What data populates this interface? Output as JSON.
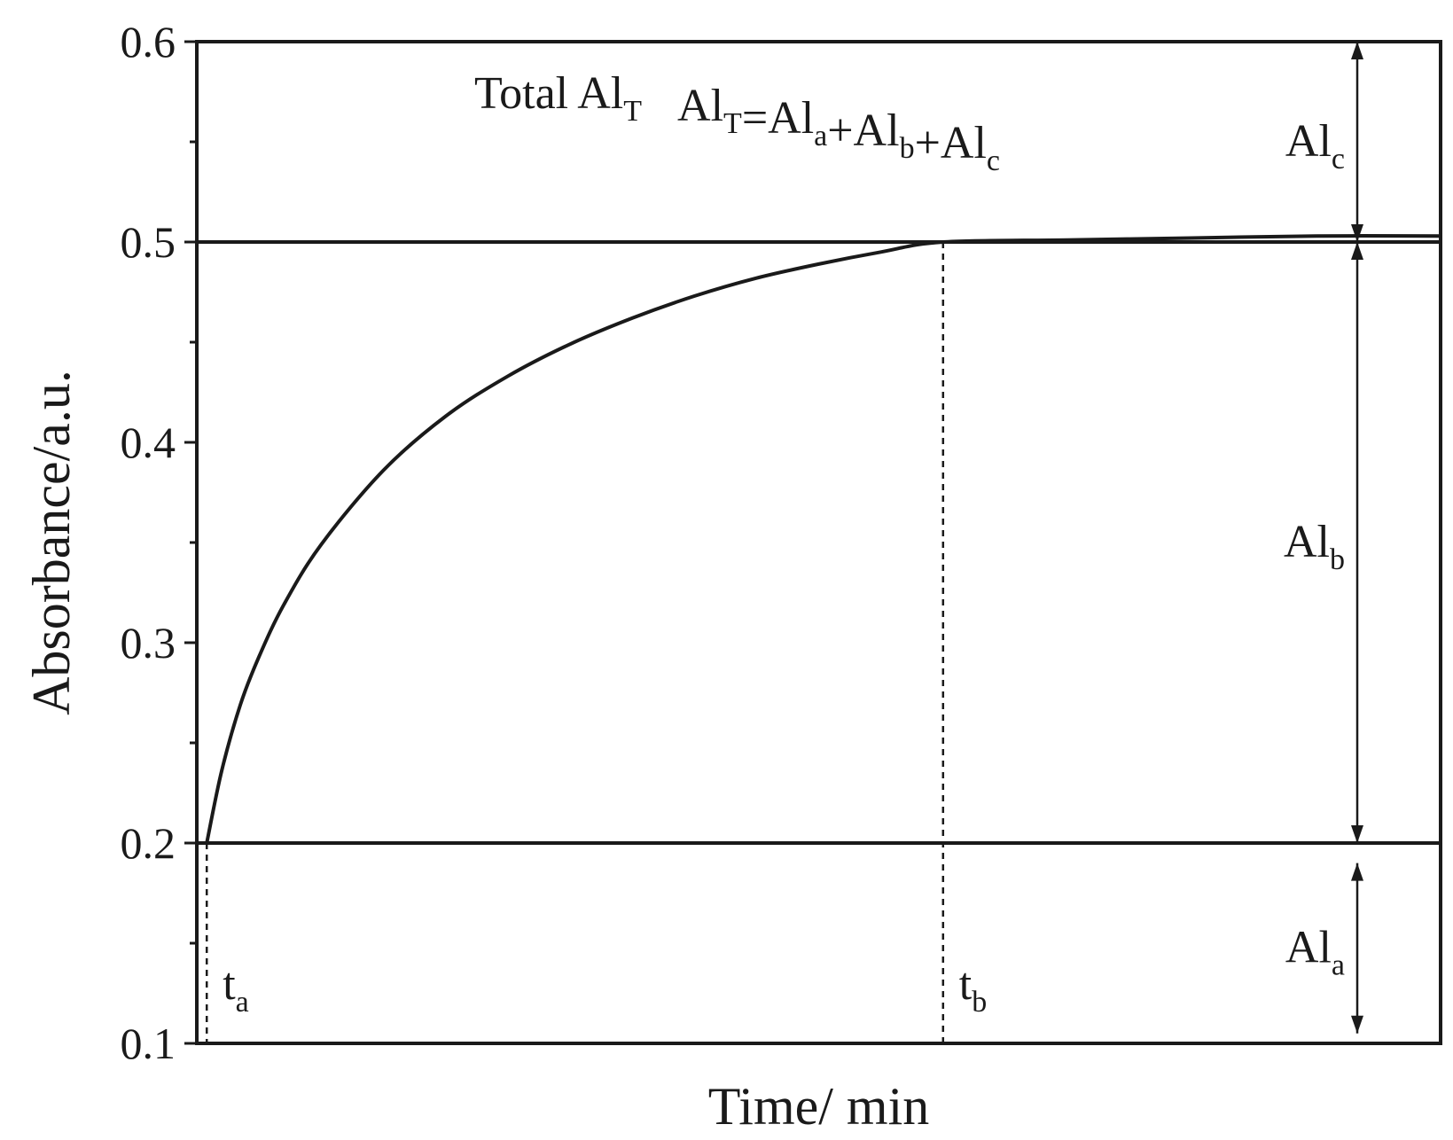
{
  "chart_data": {
    "type": "line",
    "title": "",
    "xlabel": "Time/ min",
    "ylabel": "Absorbance/a.u.",
    "ylim": [
      0.1,
      0.6
    ],
    "yticks": [
      "0.1",
      "0.2",
      "0.3",
      "0.4",
      "0.5",
      "0.6"
    ],
    "xlim": [
      0,
      10
    ],
    "grid": false,
    "series": [
      {
        "x": [
          0.08,
          0.2,
          0.35,
          0.5,
          0.7,
          1.0,
          1.5,
          2.0,
          2.5,
          3.0,
          3.5,
          4.0,
          4.5,
          5.0,
          5.5,
          6.0,
          7.0,
          8.0,
          9.0,
          10.0
        ],
        "values": [
          0.2,
          0.236,
          0.269,
          0.293,
          0.319,
          0.349,
          0.386,
          0.413,
          0.433,
          0.449,
          0.462,
          0.473,
          0.482,
          0.489,
          0.495,
          0.5,
          0.501,
          0.502,
          0.503,
          0.503
        ]
      }
    ],
    "reference_lines": [
      {
        "axis": "y",
        "value": 0.2
      },
      {
        "axis": "y",
        "value": 0.5
      }
    ],
    "markers": [
      {
        "label": "t",
        "sub": "a",
        "x": 0.08
      },
      {
        "label": "t",
        "sub": "b",
        "x": 6.0
      }
    ],
    "formula": {
      "prefix": "Total Al",
      "prefix_sub": "T",
      "parts": [
        {
          "text": "Al",
          "sub": "T"
        },
        {
          "text": "=Al",
          "sub": "a"
        },
        {
          "text": "+Al",
          "sub": "b"
        },
        {
          "text": "+Al",
          "sub": "c"
        }
      ]
    },
    "ranges": [
      {
        "label": "Al",
        "sub": "c",
        "from": 0.6,
        "to": 0.5
      },
      {
        "label": "Al",
        "sub": "b",
        "from": 0.5,
        "to": 0.2
      },
      {
        "label": "Al",
        "sub": "a",
        "from": 0.19,
        "to": 0.105
      }
    ]
  }
}
